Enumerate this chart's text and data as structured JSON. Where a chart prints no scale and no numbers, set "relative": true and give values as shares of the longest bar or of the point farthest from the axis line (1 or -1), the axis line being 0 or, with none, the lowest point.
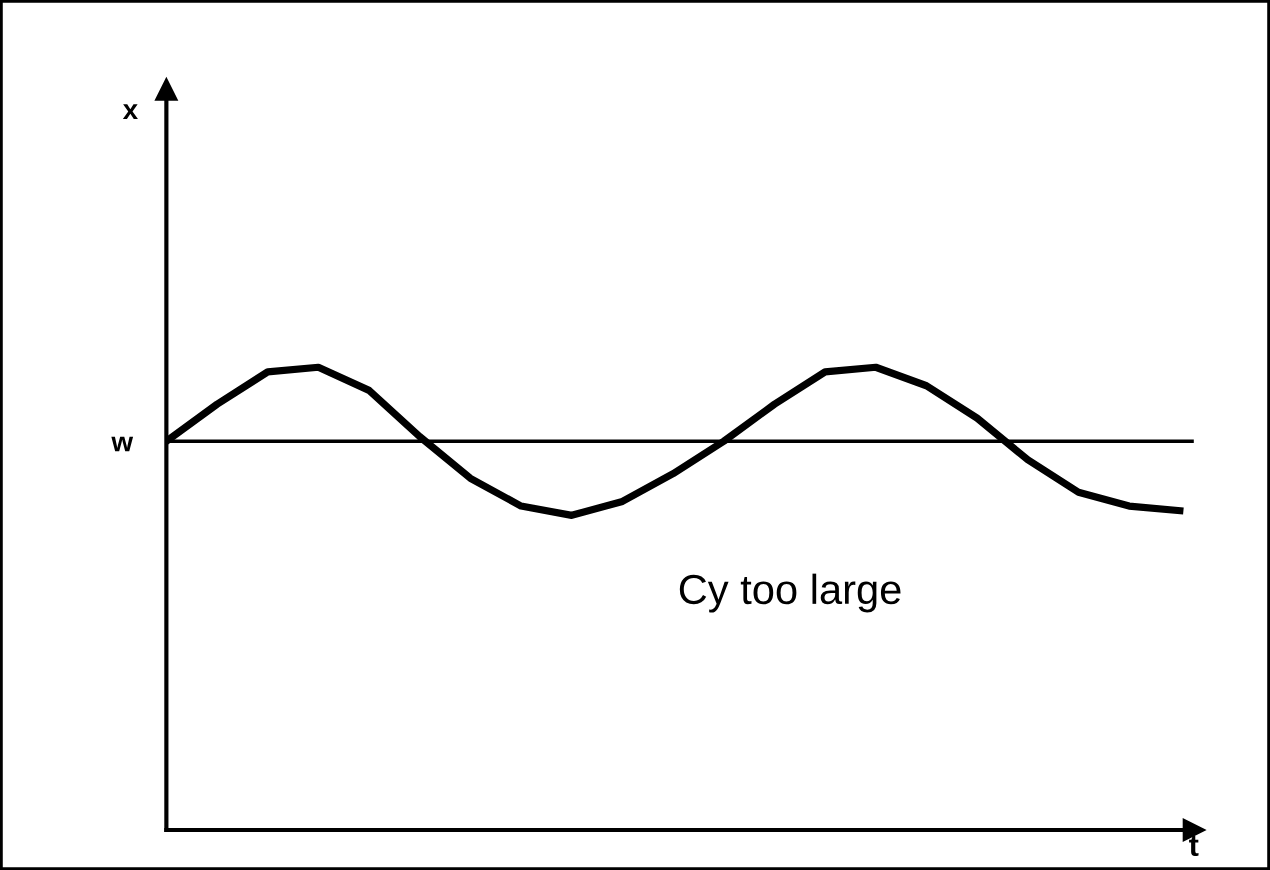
{
  "chart_data": {
    "type": "line",
    "relative": true,
    "xlabel": "t",
    "categories": [
      null,
      null,
      null,
      null,
      null,
      null,
      null,
      null,
      null,
      null,
      null,
      null,
      null,
      null,
      null,
      null,
      null,
      null,
      null,
      null,
      null
    ],
    "series": [
      {
        "color": "#000000",
        "values": [
          0.84,
          0.92,
          0.99,
          1.0,
          0.95,
          0.85,
          0.76,
          0.7,
          0.68,
          0.71,
          0.77,
          0.84,
          0.92,
          0.99,
          1.0,
          0.96,
          0.89,
          0.8,
          0.73,
          0.7,
          0.69
        ]
      }
    ],
    "ref_lines": [
      {
        "axis": "y",
        "value": 0.84,
        "label": "w",
        "color": "#000000"
      }
    ],
    "annotations": [
      "x",
      "Cy too large"
    ],
    "grid": false,
    "legend": false,
    "marker": "none",
    "line_style": "solid"
  }
}
